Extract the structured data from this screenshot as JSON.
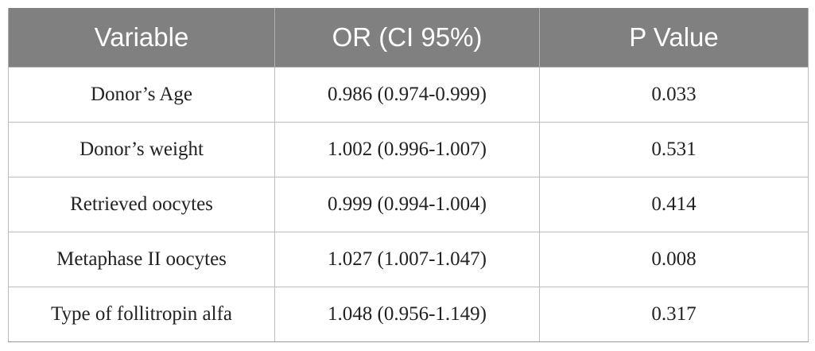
{
  "table": {
    "headers": [
      "Variable",
      "OR (CI 95%)",
      "P Value"
    ],
    "rows": [
      [
        "Donor’s Age",
        "0.986 (0.974-0.999)",
        "0.033"
      ],
      [
        "Donor’s weight",
        "1.002 (0.996-1.007)",
        "0.531"
      ],
      [
        "Retrieved oocytes",
        "0.999 (0.994-1.004)",
        "0.414"
      ],
      [
        "Metaphase II oocytes",
        "1.027 (1.007-1.047)",
        "0.008"
      ],
      [
        "Type of follitropin alfa",
        "1.048 (0.956-1.149)",
        "0.317"
      ]
    ]
  },
  "colors": {
    "header_background": "#808080",
    "header_text": "#ffffff",
    "grid_line": "#bdbdbd"
  }
}
